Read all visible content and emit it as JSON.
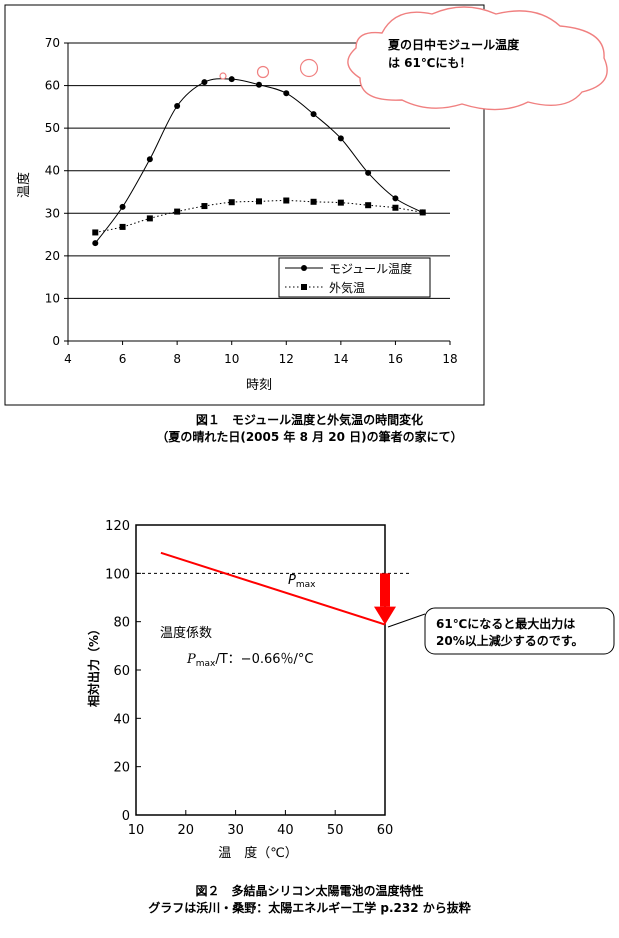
{
  "chart_data": [
    {
      "type": "line",
      "xlabel": "時刻",
      "ylabel": "温度",
      "xlim": [
        4,
        18
      ],
      "ylim": [
        0,
        70
      ],
      "xticks": [
        4,
        6,
        8,
        10,
        12,
        14,
        16,
        18
      ],
      "yticks": [
        0,
        10,
        20,
        30,
        40,
        50,
        60,
        70
      ],
      "grid": true,
      "legend_position": "bottom-right",
      "series": [
        {
          "name": "モジュール温度",
          "color": "#000000",
          "x": [
            5,
            6,
            7,
            8,
            9,
            10,
            11,
            12,
            13,
            14,
            15,
            16,
            17
          ],
          "y": [
            23,
            31.5,
            42.7,
            55.2,
            60.8,
            61.5,
            60.2,
            58.2,
            53.3,
            47.6,
            39.5,
            33.5,
            30.2
          ]
        },
        {
          "name": "外気温",
          "color": "#000000",
          "x": [
            5,
            6,
            7,
            8,
            9,
            10,
            11,
            12,
            13,
            14,
            15,
            16,
            17
          ],
          "y": [
            25.5,
            26.8,
            28.8,
            30.4,
            31.7,
            32.6,
            32.8,
            33,
            32.7,
            32.5,
            31.9,
            31.3,
            30.2
          ]
        }
      ],
      "callout": {
        "line1": "夏の日中モジュール温度",
        "line2": "は 61℃にも！"
      },
      "caption": {
        "line1": "図１　モジュール温度と外気温の時間変化",
        "line2": "（夏の晴れた日(2005 年 8 月 20 日)の筆者の家にて）"
      }
    },
    {
      "type": "line",
      "xlabel": "温　度（℃）",
      "ylabel": "相対出力（%）",
      "xlim": [
        10,
        60
      ],
      "ylim": [
        0,
        120
      ],
      "xticks": [
        10,
        20,
        30,
        40,
        50,
        60
      ],
      "yticks": [
        0,
        20,
        40,
        60,
        80,
        100,
        120
      ],
      "grid": false,
      "series": [
        {
          "color": "#ff0000",
          "x": [
            15,
            60
          ],
          "y": [
            108.5,
            78.8
          ]
        }
      ],
      "reference_line": {
        "y": 100
      },
      "reference_label": {
        "main": "P",
        "sub": "max"
      },
      "coefficient": {
        "title": "温度係数",
        "main": "P",
        "sub": "max",
        "rest": "/T：−0.66％/°C"
      },
      "arrow": {
        "x": 60,
        "from_y": 100,
        "to_y": 78.8,
        "color": "#ff0000"
      },
      "callout": {
        "line1": "61℃になると最大出力は",
        "line2": "20%以上減少するのです。"
      },
      "caption": {
        "line1": "図２　多結晶シリコン太陽電池の温度特性",
        "line2": "グラフは浜川・桑野：太陽エネルギー工学 p.232 から抜粋"
      }
    }
  ]
}
